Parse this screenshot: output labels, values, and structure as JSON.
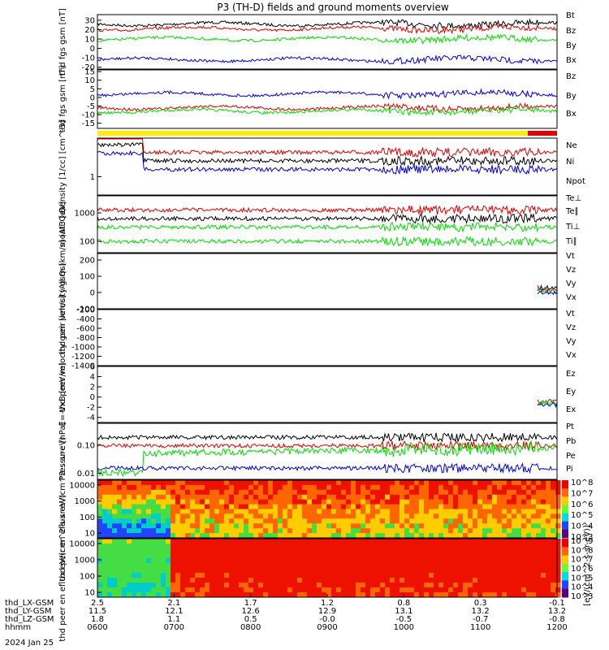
{
  "title": "P3 (TH-D) fields and ground moments overview",
  "date_label": "2024 Jan 25",
  "colors": {
    "black": "#000000",
    "red": "#e00000",
    "green": "#00dd00",
    "blue": "#0000e0",
    "yellow": "#ffee00"
  },
  "time_axis": {
    "row_labels": [
      "thd_LX-GSM",
      "thd_LY-GSM",
      "thd_LZ-GSM",
      "hhmm"
    ],
    "columns": [
      {
        "LX": "2.5",
        "LY": "11.5",
        "LZ": "1.8",
        "hhmm": "0600"
      },
      {
        "LX": "2.1",
        "LY": "12.1",
        "LZ": "1.1",
        "hhmm": "0700"
      },
      {
        "LX": "1.7",
        "LY": "12.6",
        "LZ": "0.5",
        "hhmm": "0800"
      },
      {
        "LX": "1.2",
        "LY": "12.9",
        "LZ": "-0.0",
        "hhmm": "0900"
      },
      {
        "LX": "0.8",
        "LY": "13.1",
        "LZ": "-0.5",
        "hhmm": "1000"
      },
      {
        "LX": "0.3",
        "LY": "13.2",
        "LZ": "-0.7",
        "hhmm": "1100"
      },
      {
        "LX": "-0.1",
        "LY": "13.2",
        "LZ": "-0.8",
        "hhmm": "1200"
      }
    ]
  },
  "colorbar_label": "[eV/(cm^2-s-sr-eV)]",
  "chart_data": [
    {
      "type": "line",
      "ylabel": "thd fgs gsm [nT]",
      "ylim": [
        -22,
        36
      ],
      "ticks": [
        "30",
        "20",
        "10",
        "0",
        "-10",
        "-20"
      ],
      "series": [
        {
          "name": "Bt",
          "color": "#000000",
          "baseline": 26
        },
        {
          "name": "Bz",
          "color": "#e00000",
          "baseline": 21
        },
        {
          "name": "By",
          "color": "#00dd00",
          "baseline": 10
        },
        {
          "name": "Bx",
          "color": "#0000e0",
          "baseline": -12
        }
      ]
    },
    {
      "type": "line",
      "ylabel": "thd fgs gsm [nT]",
      "ylim": [
        -18,
        16
      ],
      "ticks": [
        "15",
        "10",
        "5",
        "0",
        "-5",
        "-10",
        "-15"
      ],
      "series": [
        {
          "name": "Bz",
          "color": "#e00000",
          "baseline": -6
        },
        {
          "name": "By",
          "color": "#00dd00",
          "baseline": -8
        },
        {
          "name": "Bx",
          "color": "#0000e0",
          "baseline": 2
        }
      ]
    },
    {
      "type": "line",
      "ylabel": "Density [1/cc] [cm^-3]",
      "ylim": [
        0.05,
        3
      ],
      "ticks": [
        "1"
      ],
      "series": [
        {
          "name": "Ne",
          "color": "#e00000"
        },
        {
          "name": "Ni",
          "color": "#000000"
        },
        {
          "name": "Npot",
          "color": "#0000e0"
        }
      ]
    },
    {
      "type": "line",
      "ylabel": "moat3 [eV]",
      "ylim": [
        40,
        4000
      ],
      "log": true,
      "ticks": [
        "1000",
        "100"
      ],
      "series": [
        {
          "name": "Te⊥",
          "color": "#e00000"
        },
        {
          "name": "Te∥",
          "color": "#000000"
        },
        {
          "name": "Ti⊥",
          "color": "#00dd00"
        },
        {
          "name": "Ti∥",
          "color": "#00dd00"
        }
      ]
    },
    {
      "type": "line",
      "ylabel": "thd peir velocity gsm [km/s] (All Qs)",
      "ylim": [
        -100,
        240
      ],
      "ticks": [
        "200",
        "100",
        "0",
        "-100"
      ],
      "series": [
        {
          "name": "Vt",
          "color": "#000000"
        },
        {
          "name": "Vz",
          "color": "#e00000"
        },
        {
          "name": "Vy",
          "color": "#00dd00"
        },
        {
          "name": "Vx",
          "color": "#0000e0"
        }
      ]
    },
    {
      "type": "line",
      "ylabel": "thd peer velocity gsm [km/s] (All Qs)",
      "ylim": [
        -1400,
        -200
      ],
      "ticks": [
        "-200",
        "-400",
        "-600",
        "-800",
        "-1000",
        "-1200",
        "-1400"
      ],
      "series": [
        {
          "name": "Vt",
          "color": "#000000"
        },
        {
          "name": "Vz",
          "color": "#e00000"
        },
        {
          "name": "Vy",
          "color": "#00dd00"
        },
        {
          "name": "Vx",
          "color": "#0000e0"
        }
      ]
    },
    {
      "type": "line",
      "ylabel": "E=-VxB [mV/m]",
      "ylim": [
        -5,
        6
      ],
      "ticks": [
        "6",
        "4",
        "2",
        "0",
        "-2",
        "-4"
      ],
      "series": [
        {
          "name": "Ez",
          "color": "#e00000"
        },
        {
          "name": "Ey",
          "color": "#00dd00"
        },
        {
          "name": "Ex",
          "color": "#0000e0"
        }
      ]
    },
    {
      "type": "line",
      "ylabel": "Pressure [nPa]",
      "ylim": [
        0.006,
        0.6
      ],
      "log": true,
      "ticks": [
        "0.10",
        "0.01"
      ],
      "series": [
        {
          "name": "Pt",
          "color": "#000000"
        },
        {
          "name": "Pb",
          "color": "#e00000"
        },
        {
          "name": "Pe",
          "color": "#00dd00"
        },
        {
          "name": "Pi",
          "color": "#0000e0"
        }
      ]
    },
    {
      "type": "heatmap",
      "ylabel": "thd peir en eflux eV/(cm^2-s-sr-eV)",
      "ylim": [
        5,
        20000
      ],
      "log": true,
      "ticks": [
        "10000",
        "1000",
        "100",
        "10"
      ],
      "colorbar_ticks": [
        "10^8",
        "10^7",
        "10^6",
        "10^5",
        "10^4",
        "10^3"
      ]
    },
    {
      "type": "heatmap",
      "ylabel": "thd peer en eflux eV/(cm^2-s-sr-eV)",
      "ylim": [
        5,
        20000
      ],
      "log": true,
      "ticks": [
        "10000",
        "1000",
        "100",
        "10"
      ],
      "colorbar_ticks": [
        "10^9",
        "10^8",
        "10^7",
        "10^6",
        "10^5",
        "10^4",
        "10^3"
      ]
    }
  ]
}
